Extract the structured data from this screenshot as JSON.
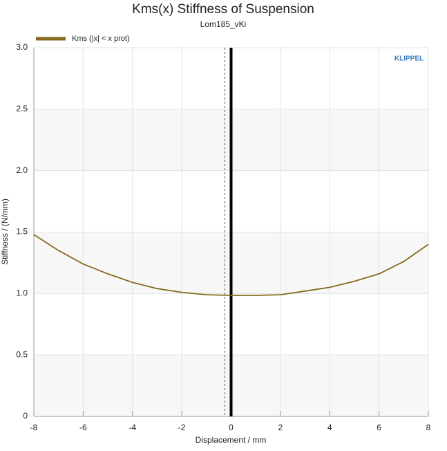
{
  "chart_data": {
    "type": "line",
    "title": "Kms(x) Stiffness of Suspension",
    "subtitle": "Lom185_vKi",
    "x_label": "Displacement / mm",
    "y_label": "Stiffness / (N/mm)",
    "logo": "KLIPPEL",
    "legend": "upper-left",
    "grid": true,
    "x": [
      -8,
      -7,
      -6,
      -5,
      -4,
      -3,
      -2,
      -1,
      0,
      1,
      2,
      3,
      4,
      5,
      6,
      7,
      8
    ],
    "series": [
      {
        "name": "Kms (|x| < x prot)",
        "color": "#86691a",
        "values": [
          1.48,
          1.35,
          1.24,
          1.16,
          1.09,
          1.04,
          1.01,
          0.99,
          0.985,
          0.985,
          0.99,
          1.02,
          1.05,
          1.1,
          1.16,
          1.26,
          1.4
        ]
      }
    ],
    "vertical_lines": [
      {
        "x": 0,
        "style": "solid"
      },
      {
        "x": -0.25,
        "style": "dashed"
      }
    ],
    "xlim": [
      -8,
      8
    ],
    "xticks": [
      -8,
      -6,
      -4,
      -2,
      0,
      2,
      4,
      6,
      8
    ],
    "ylim": [
      0,
      3
    ],
    "yticks": [
      0,
      {
        "value": 0.5,
        "label": "0.5"
      },
      {
        "value": 1,
        "label": "1.0"
      },
      {
        "value": 1.5,
        "label": "1.5"
      },
      {
        "value": 2,
        "label": "2.0"
      },
      {
        "value": 2.5,
        "label": "2.5"
      },
      {
        "value": 3,
        "label": "3.0"
      }
    ]
  }
}
